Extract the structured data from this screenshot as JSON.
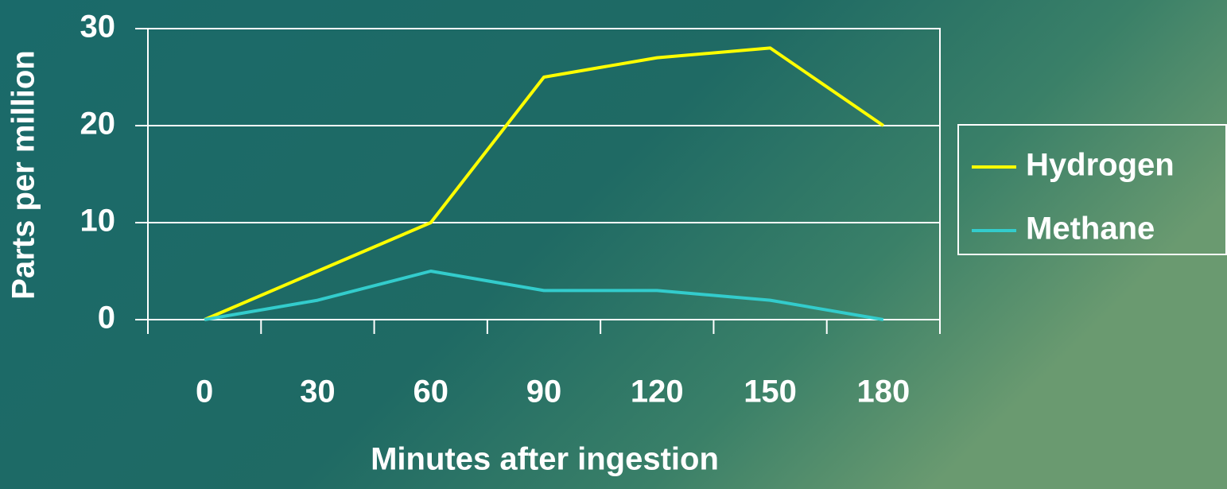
{
  "chart_data": {
    "type": "line",
    "categories": [
      "0",
      "30",
      "60",
      "90",
      "120",
      "150",
      "180"
    ],
    "series": [
      {
        "name": "Hydrogen",
        "color": "#ffff00",
        "values": [
          0,
          5,
          10,
          25,
          27,
          28,
          20
        ]
      },
      {
        "name": "Methane",
        "color": "#33cccc",
        "values": [
          0,
          2,
          5,
          3,
          3,
          2,
          0
        ]
      }
    ],
    "x_label": "Minutes after ingestion",
    "y_label": "Parts per million",
    "ylim": [
      0,
      30
    ],
    "yticks": [
      0,
      10,
      20,
      30
    ],
    "grid": true,
    "legend": "right"
  }
}
